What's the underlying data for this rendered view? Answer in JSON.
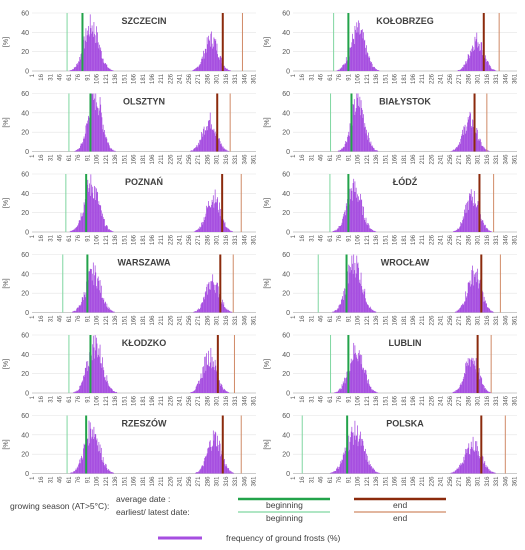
{
  "figure": {
    "y_unit_label": "[%]",
    "legend": {
      "season_label": "growing season (AT>5°C):",
      "average_label": "average date :",
      "extreme_label": "earliest/ latest date:",
      "beginning_label": "beginning",
      "end_label": "end",
      "frequency_label": "frequency of ground frosts (%)",
      "colors": {
        "avg_begin": "#22a34a",
        "extreme_begin": "#7fd6a0",
        "avg_end": "#8b2a0c",
        "extreme_end": "#d08a66",
        "frequency": "#a64ee0"
      }
    }
  },
  "chart_data": [
    {
      "type": "bar",
      "title": "SZCZECIN",
      "ylim": [
        0,
        60
      ],
      "yticks": [
        0,
        20,
        40,
        60
      ],
      "xticks": [
        1,
        16,
        31,
        46,
        61,
        76,
        91,
        106,
        121,
        136,
        151,
        166,
        181,
        196,
        211,
        226,
        241,
        256,
        271,
        286,
        301,
        316,
        331,
        346,
        361
      ],
      "spring_peak": {
        "center": 97,
        "width": 12,
        "height": 46
      },
      "autumn_peak": {
        "center": 292,
        "width": 11,
        "height": 33
      },
      "avg_begin": 83,
      "avg_end": 311,
      "earliest_begin": 58,
      "latest_end": 343
    },
    {
      "type": "bar",
      "title": "KOŁOBRZEG",
      "ylim": [
        0,
        60
      ],
      "yticks": [
        0,
        20,
        40,
        60
      ],
      "xticks": [
        1,
        16,
        31,
        46,
        61,
        76,
        91,
        106,
        121,
        136,
        151,
        166,
        181,
        196,
        211,
        226,
        241,
        256,
        271,
        286,
        301,
        316,
        331,
        346,
        361
      ],
      "spring_peak": {
        "center": 106,
        "width": 12,
        "height": 41
      },
      "autumn_peak": {
        "center": 299,
        "width": 11,
        "height": 32
      },
      "avg_begin": 91,
      "avg_end": 311,
      "earliest_begin": 67,
      "latest_end": 336
    },
    {
      "type": "bar",
      "title": "OLSZTYN",
      "ylim": [
        0,
        60
      ],
      "yticks": [
        0,
        20,
        40,
        60
      ],
      "xticks": [
        1,
        16,
        31,
        46,
        61,
        76,
        91,
        106,
        121,
        136,
        151,
        166,
        181,
        196,
        211,
        226,
        241,
        256,
        271,
        286,
        301,
        316,
        331,
        346,
        361
      ],
      "spring_peak": {
        "center": 103,
        "width": 11,
        "height": 57
      },
      "autumn_peak": {
        "center": 289,
        "width": 11,
        "height": 32
      },
      "avg_begin": 96,
      "avg_end": 302,
      "earliest_begin": 61,
      "latest_end": 323
    },
    {
      "type": "bar",
      "title": "BIAŁYSTOK",
      "ylim": [
        0,
        60
      ],
      "yticks": [
        0,
        20,
        40,
        60
      ],
      "xticks": [
        1,
        16,
        31,
        46,
        61,
        76,
        91,
        106,
        121,
        136,
        151,
        166,
        181,
        196,
        211,
        226,
        241,
        256,
        271,
        286,
        301,
        316,
        331,
        346,
        361
      ],
      "spring_peak": {
        "center": 106,
        "width": 11,
        "height": 50
      },
      "autumn_peak": {
        "center": 288,
        "width": 11,
        "height": 32
      },
      "avg_begin": 96,
      "avg_end": 296,
      "earliest_begin": 62,
      "latest_end": 316
    },
    {
      "type": "bar",
      "title": "POZNAŃ",
      "ylim": [
        0,
        60
      ],
      "yticks": [
        0,
        20,
        40,
        60
      ],
      "xticks": [
        1,
        16,
        31,
        46,
        61,
        76,
        91,
        106,
        121,
        136,
        151,
        166,
        181,
        196,
        211,
        226,
        241,
        256,
        271,
        286,
        301,
        316,
        331,
        346,
        361
      ],
      "spring_peak": {
        "center": 97,
        "width": 12,
        "height": 48
      },
      "autumn_peak": {
        "center": 295,
        "width": 11,
        "height": 36
      },
      "avg_begin": 89,
      "avg_end": 310,
      "earliest_begin": 56,
      "latest_end": 341
    },
    {
      "type": "bar",
      "title": "ŁÓDŹ",
      "ylim": [
        0,
        60
      ],
      "yticks": [
        0,
        20,
        40,
        60
      ],
      "xticks": [
        1,
        16,
        31,
        46,
        61,
        76,
        91,
        106,
        121,
        136,
        151,
        166,
        181,
        196,
        211,
        226,
        241,
        256,
        271,
        286,
        301,
        316,
        331,
        346,
        361
      ],
      "spring_peak": {
        "center": 100,
        "width": 12,
        "height": 44
      },
      "autumn_peak": {
        "center": 292,
        "width": 11,
        "height": 36
      },
      "avg_begin": 91,
      "avg_end": 304,
      "earliest_begin": 61,
      "latest_end": 327
    },
    {
      "type": "bar",
      "title": "WARSZAWA",
      "ylim": [
        0,
        60
      ],
      "yticks": [
        0,
        20,
        40,
        60
      ],
      "xticks": [
        1,
        16,
        31,
        46,
        61,
        76,
        91,
        106,
        121,
        136,
        151,
        166,
        181,
        196,
        211,
        226,
        241,
        256,
        271,
        286,
        301,
        316,
        331,
        346,
        361
      ],
      "spring_peak": {
        "center": 100,
        "width": 12,
        "height": 40
      },
      "autumn_peak": {
        "center": 294,
        "width": 11,
        "height": 32
      },
      "avg_begin": 91,
      "avg_end": 307,
      "earliest_begin": 51,
      "latest_end": 328
    },
    {
      "type": "bar",
      "title": "WROCŁAW",
      "ylim": [
        0,
        60
      ],
      "yticks": [
        0,
        20,
        40,
        60
      ],
      "xticks": [
        1,
        16,
        31,
        46,
        61,
        76,
        91,
        106,
        121,
        136,
        151,
        166,
        181,
        196,
        211,
        226,
        241,
        256,
        271,
        286,
        301,
        316,
        331,
        346,
        361
      ],
      "spring_peak": {
        "center": 100,
        "width": 12,
        "height": 52
      },
      "autumn_peak": {
        "center": 295,
        "width": 11,
        "height": 40
      },
      "avg_begin": 88,
      "avg_end": 307,
      "earliest_begin": 42,
      "latest_end": 338
    },
    {
      "type": "bar",
      "title": "KŁODZKO",
      "ylim": [
        0,
        60
      ],
      "yticks": [
        0,
        20,
        40,
        60
      ],
      "xticks": [
        1,
        16,
        31,
        46,
        61,
        76,
        91,
        106,
        121,
        136,
        151,
        166,
        181,
        196,
        211,
        226,
        241,
        256,
        271,
        286,
        301,
        316,
        331,
        346,
        361
      ],
      "spring_peak": {
        "center": 103,
        "width": 12,
        "height": 50
      },
      "autumn_peak": {
        "center": 289,
        "width": 11,
        "height": 38
      },
      "avg_begin": 96,
      "avg_end": 303,
      "earliest_begin": 61,
      "latest_end": 330
    },
    {
      "type": "bar",
      "title": "LUBLIN",
      "ylim": [
        0,
        60
      ],
      "yticks": [
        0,
        20,
        40,
        60
      ],
      "xticks": [
        1,
        16,
        31,
        46,
        61,
        76,
        91,
        106,
        121,
        136,
        151,
        166,
        181,
        196,
        211,
        226,
        241,
        256,
        271,
        286,
        301,
        316,
        331,
        346,
        361
      ],
      "spring_peak": {
        "center": 103,
        "width": 12,
        "height": 44
      },
      "autumn_peak": {
        "center": 291,
        "width": 11,
        "height": 36
      },
      "avg_begin": 91,
      "avg_end": 301,
      "earliest_begin": 62,
      "latest_end": 323
    },
    {
      "type": "bar",
      "title": "RZESZÓW",
      "ylim": [
        0,
        60
      ],
      "yticks": [
        0,
        20,
        40,
        60
      ],
      "xticks": [
        1,
        16,
        31,
        46,
        61,
        76,
        91,
        106,
        121,
        136,
        151,
        166,
        181,
        196,
        211,
        226,
        241,
        256,
        271,
        286,
        301,
        316,
        331,
        346,
        361
      ],
      "spring_peak": {
        "center": 98,
        "width": 12,
        "height": 46
      },
      "autumn_peak": {
        "center": 297,
        "width": 11,
        "height": 37
      },
      "avg_begin": 89,
      "avg_end": 311,
      "earliest_begin": 58,
      "latest_end": 341
    },
    {
      "type": "bar",
      "title": "POLSKA",
      "ylim": [
        0,
        60
      ],
      "yticks": [
        0,
        20,
        40,
        60
      ],
      "xticks": [
        1,
        16,
        31,
        46,
        61,
        76,
        91,
        106,
        121,
        136,
        151,
        166,
        181,
        196,
        211,
        226,
        241,
        256,
        271,
        286,
        301,
        316,
        331,
        346,
        361
      ],
      "spring_peak": {
        "center": 101,
        "width": 14,
        "height": 42
      },
      "autumn_peak": {
        "center": 293,
        "width": 13,
        "height": 30
      },
      "avg_begin": 89,
      "avg_end": 307,
      "earliest_begin": 16,
      "latest_end": 346
    }
  ]
}
